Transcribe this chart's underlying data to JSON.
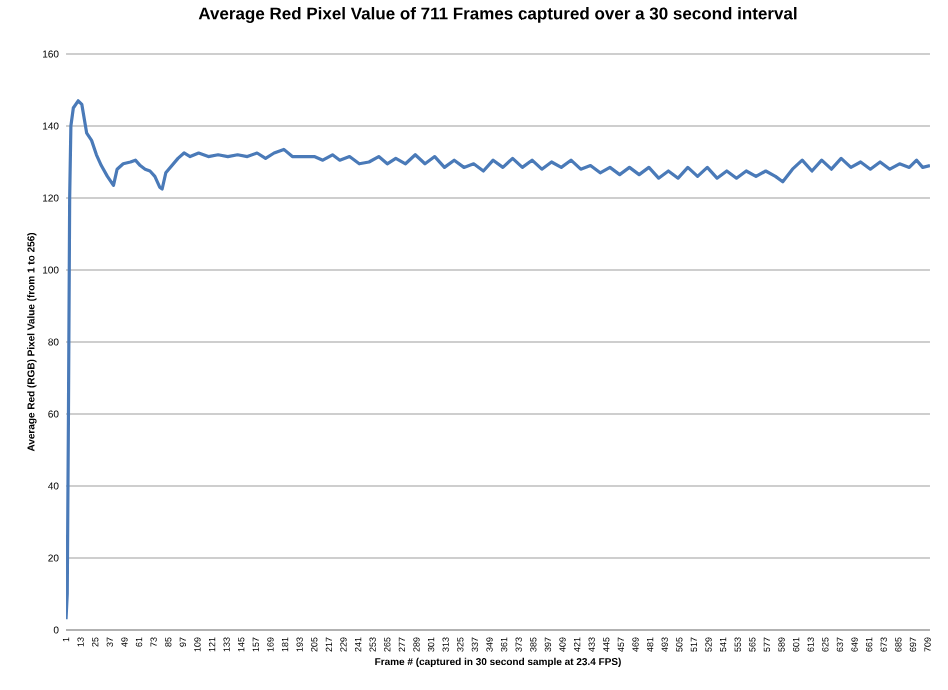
{
  "chart_data": {
    "type": "line",
    "title": "Average Red Pixel Value of 711 Frames captured over a 30 second interval",
    "xlabel": "Frame # (captured in 30 second sample at 23.4 FPS)",
    "ylabel": "Average Red (RGB) Pixel Value (from 1 to 256)",
    "xlim": [
      1,
      711
    ],
    "xticks": [
      1,
      13,
      25,
      37,
      49,
      61,
      73,
      85,
      97,
      109,
      121,
      133,
      145,
      157,
      169,
      181,
      193,
      205,
      217,
      229,
      241,
      253,
      265,
      277,
      289,
      301,
      313,
      325,
      337,
      349,
      361,
      373,
      385,
      397,
      409,
      421,
      433,
      445,
      457,
      469,
      481,
      493,
      505,
      517,
      529,
      541,
      553,
      565,
      577,
      589,
      601,
      613,
      625,
      637,
      649,
      661,
      673,
      685,
      697,
      709
    ],
    "ylim": [
      0,
      160
    ],
    "yticks": [
      0,
      20,
      40,
      60,
      80,
      100,
      120,
      140,
      160
    ],
    "grid": "y",
    "marker": "none",
    "line_style": "solid",
    "x": [
      1,
      2,
      3,
      4,
      5,
      7,
      11,
      14,
      18,
      22,
      26,
      30,
      35,
      40,
      43,
      48,
      54,
      58,
      62,
      66,
      70,
      74,
      78,
      80,
      83,
      88,
      93,
      98,
      103,
      110,
      118,
      126,
      134,
      142,
      150,
      158,
      165,
      172,
      180,
      187,
      195,
      205,
      212,
      220,
      226,
      234,
      242,
      250,
      258,
      265,
      272,
      280,
      288,
      296,
      304,
      312,
      320,
      328,
      336,
      344,
      352,
      360,
      368,
      376,
      384,
      392,
      400,
      408,
      416,
      424,
      432,
      440,
      448,
      456,
      464,
      472,
      480,
      488,
      496,
      504,
      512,
      520,
      528,
      536,
      544,
      552,
      560,
      568,
      576,
      584,
      590,
      598,
      606,
      614,
      622,
      630,
      638,
      646,
      654,
      662,
      670,
      678,
      686,
      694,
      700,
      705,
      711
    ],
    "series": [
      {
        "color": "#4a7ab8",
        "values": [
          3,
          10,
          60,
          120,
          140,
          145,
          147,
          146,
          138,
          136,
          132,
          129,
          126,
          123.5,
          128,
          129.5,
          130,
          130.5,
          129,
          128,
          127.5,
          126,
          123,
          122.5,
          127,
          129,
          131,
          132.5,
          131.5,
          132.5,
          131.5,
          132,
          131.5,
          132,
          131.5,
          132.5,
          131,
          132.5,
          133.5,
          131.5,
          131.5,
          131.5,
          130.5,
          132,
          130.5,
          131.5,
          129.5,
          130,
          131.5,
          129.5,
          131,
          129.5,
          132,
          129.5,
          131.5,
          128.5,
          130.5,
          128.5,
          129.5,
          127.5,
          130.5,
          128.5,
          131,
          128.5,
          130.5,
          128,
          130,
          128.5,
          130.5,
          128,
          129,
          127,
          128.5,
          126.5,
          128.5,
          126.5,
          128.5,
          125.5,
          127.5,
          125.5,
          128.5,
          126,
          128.5,
          125.5,
          127.5,
          125.5,
          127.5,
          126,
          127.5,
          126,
          124.5,
          128,
          130.5,
          127.5,
          130.5,
          128,
          131,
          128.5,
          130,
          128,
          130,
          128,
          129.5,
          128.5,
          130.5,
          128.5,
          129
        ]
      }
    ]
  }
}
